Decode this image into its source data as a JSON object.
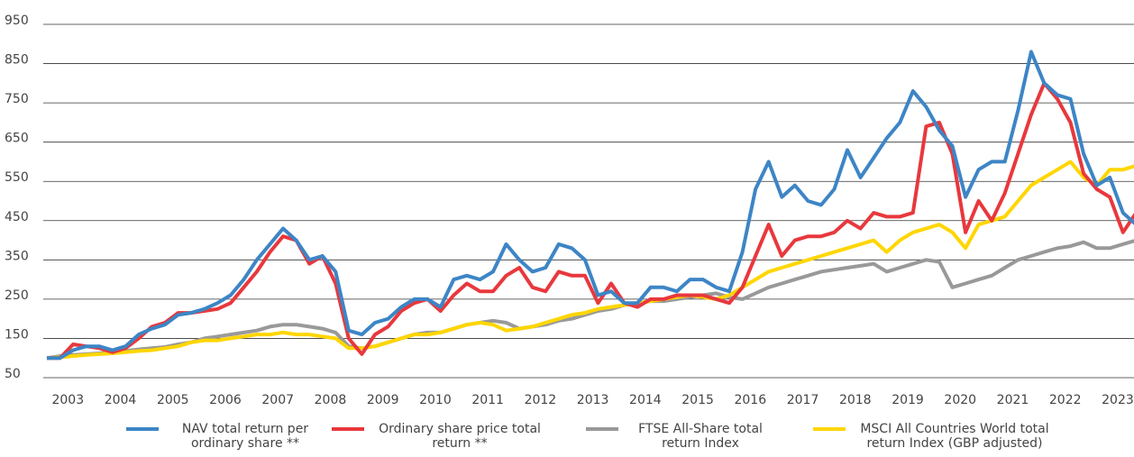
{
  "chart_data": {
    "type": "line",
    "x": [
      2002.6,
      2002.85,
      2003.1,
      2003.35,
      2003.6,
      2003.85,
      2004.1,
      2004.35,
      2004.6,
      2004.85,
      2005.1,
      2005.35,
      2005.6,
      2005.85,
      2006.1,
      2006.35,
      2006.6,
      2006.85,
      2007.1,
      2007.35,
      2007.6,
      2007.85,
      2008.1,
      2008.35,
      2008.6,
      2008.85,
      2009.1,
      2009.35,
      2009.6,
      2009.85,
      2010.1,
      2010.35,
      2010.6,
      2010.85,
      2011.1,
      2011.35,
      2011.6,
      2011.85,
      2012.1,
      2012.35,
      2012.6,
      2012.85,
      2013.1,
      2013.35,
      2013.6,
      2013.85,
      2014.1,
      2014.35,
      2014.6,
      2014.85,
      2015.1,
      2015.35,
      2015.6,
      2015.85,
      2016.1,
      2016.35,
      2016.6,
      2016.85,
      2017.1,
      2017.35,
      2017.6,
      2017.85,
      2018.1,
      2018.35,
      2018.6,
      2018.85,
      2019.1,
      2019.35,
      2019.6,
      2019.85,
      2020.1,
      2020.35,
      2020.6,
      2020.85,
      2021.1,
      2021.35,
      2021.6,
      2021.85,
      2022.1,
      2022.35,
      2022.6,
      2022.85,
      2023.1,
      2023.35
    ],
    "series": [
      {
        "name": "NAV total return per ordinary share **",
        "color": "#3d85c6",
        "values": [
          100,
          100,
          120,
          130,
          130,
          120,
          130,
          160,
          175,
          185,
          210,
          215,
          225,
          240,
          260,
          300,
          350,
          390,
          430,
          400,
          350,
          360,
          320,
          170,
          160,
          190,
          200,
          230,
          250,
          250,
          230,
          300,
          310,
          300,
          320,
          390,
          350,
          320,
          330,
          390,
          380,
          350,
          260,
          270,
          240,
          240,
          280,
          280,
          270,
          300,
          300,
          280,
          270,
          370,
          530,
          600,
          510,
          540,
          500,
          490,
          530,
          630,
          560,
          610,
          660,
          700,
          780,
          740,
          680,
          640,
          510,
          580,
          600,
          600,
          730,
          880,
          800,
          770,
          760,
          620,
          540,
          560,
          470,
          440
        ]
      },
      {
        "name": "Ordinary share price total return **",
        "color": "#e8383d",
        "values": [
          100,
          100,
          135,
          130,
          125,
          115,
          125,
          150,
          180,
          190,
          215,
          215,
          220,
          225,
          240,
          280,
          320,
          370,
          410,
          400,
          340,
          360,
          290,
          150,
          110,
          160,
          180,
          220,
          240,
          250,
          220,
          260,
          290,
          270,
          270,
          310,
          330,
          280,
          270,
          320,
          310,
          310,
          240,
          290,
          240,
          230,
          250,
          250,
          260,
          260,
          260,
          250,
          240,
          280,
          360,
          440,
          360,
          400,
          410,
          410,
          420,
          450,
          430,
          470,
          460,
          460,
          470,
          690,
          700,
          620,
          420,
          500,
          450,
          520,
          620,
          720,
          800,
          760,
          700,
          570,
          530,
          510,
          420,
          470
        ]
      },
      {
        "name": "FTSE All-Share total return Index",
        "color": "#999999",
        "values": [
          100,
          105,
          108,
          110,
          112,
          115,
          118,
          122,
          125,
          128,
          135,
          140,
          150,
          155,
          160,
          165,
          170,
          180,
          185,
          185,
          180,
          175,
          165,
          130,
          125,
          130,
          140,
          150,
          160,
          165,
          165,
          175,
          185,
          190,
          195,
          190,
          175,
          180,
          185,
          195,
          200,
          210,
          220,
          225,
          235,
          240,
          245,
          245,
          250,
          255,
          260,
          265,
          255,
          250,
          265,
          280,
          290,
          300,
          310,
          320,
          325,
          330,
          335,
          340,
          320,
          330,
          340,
          350,
          345,
          280,
          290,
          300,
          310,
          330,
          350,
          360,
          370,
          380,
          385,
          395,
          380,
          380,
          390,
          400
        ]
      },
      {
        "name": "MSCI All Countries World total return Index (GBP adjusted)",
        "color": "#ffd600",
        "values": [
          100,
          102,
          105,
          108,
          110,
          112,
          115,
          118,
          120,
          125,
          130,
          140,
          145,
          145,
          150,
          155,
          160,
          160,
          165,
          160,
          160,
          155,
          150,
          125,
          125,
          130,
          140,
          150,
          160,
          160,
          165,
          175,
          185,
          190,
          185,
          170,
          175,
          180,
          190,
          200,
          210,
          215,
          225,
          230,
          235,
          240,
          245,
          250,
          255,
          260,
          255,
          250,
          260,
          280,
          300,
          320,
          330,
          340,
          350,
          360,
          370,
          380,
          390,
          400,
          370,
          400,
          420,
          430,
          440,
          420,
          380,
          440,
          450,
          460,
          500,
          540,
          560,
          580,
          600,
          560,
          540,
          580,
          580,
          590
        ]
      }
    ],
    "xlim": [
      2002.6,
      2023.31
    ],
    "xticks": [
      2003,
      2004,
      2005,
      2006,
      2007,
      2008,
      2009,
      2010,
      2011,
      2012,
      2013,
      2014,
      2015,
      2016,
      2017,
      2018,
      2019,
      2020,
      2021,
      2022,
      2023
    ],
    "ylim": [
      50,
      950
    ],
    "yticks": [
      50,
      150,
      250,
      350,
      450,
      550,
      650,
      750,
      850,
      950
    ],
    "grid": true
  }
}
